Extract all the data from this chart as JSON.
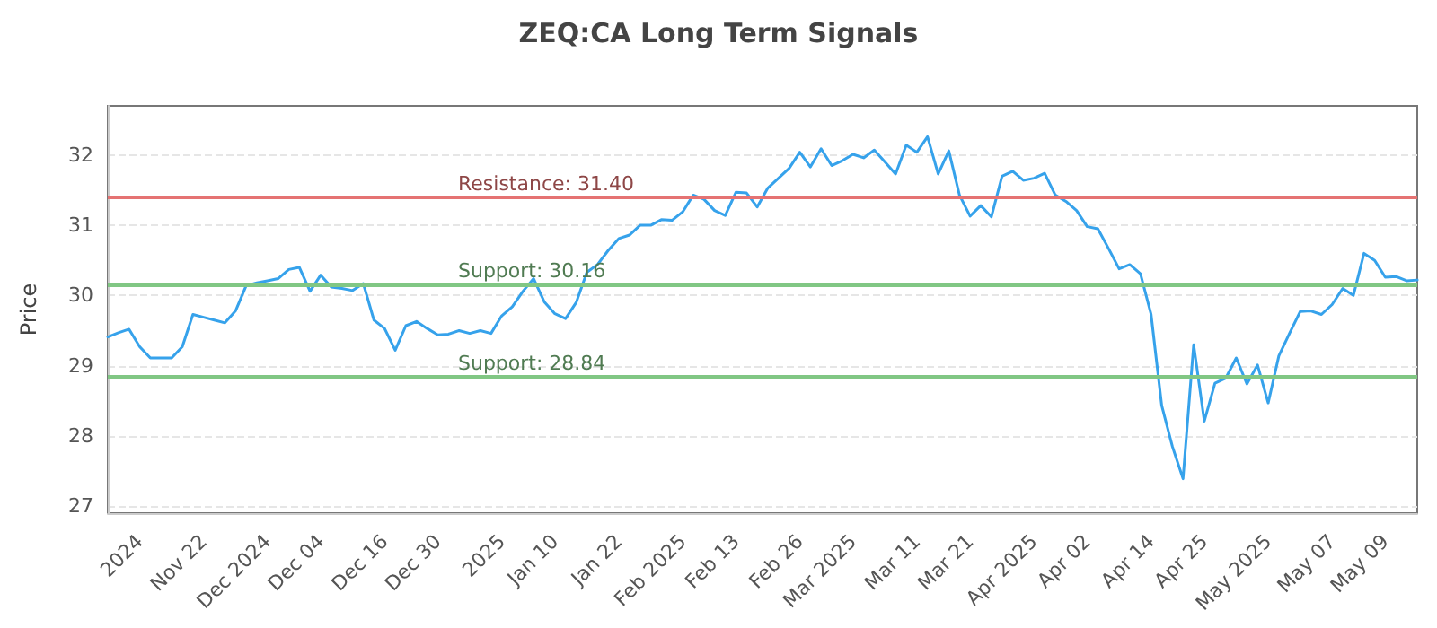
{
  "chart_data": {
    "type": "line",
    "title": "ZEQ:CA Long Term Signals",
    "ylabel": "Price",
    "categories": [
      null,
      null,
      null,
      "2024",
      null,
      null,
      null,
      null,
      null,
      "Nov 22",
      null,
      null,
      null,
      null,
      null,
      "Dec 2024",
      null,
      null,
      null,
      null,
      "Dec 04",
      null,
      null,
      null,
      null,
      null,
      "Dec 16",
      null,
      null,
      null,
      null,
      "Dec 30",
      null,
      null,
      null,
      null,
      null,
      "2025",
      null,
      null,
      null,
      null,
      "Jan 10",
      null,
      null,
      null,
      null,
      null,
      "Jan 22",
      null,
      null,
      null,
      null,
      null,
      "Feb 2025",
      null,
      null,
      null,
      null,
      "Feb 13",
      null,
      null,
      null,
      null,
      null,
      "Feb 26",
      null,
      null,
      null,
      null,
      "Mar 2025",
      null,
      null,
      null,
      null,
      null,
      "Mar 11",
      null,
      null,
      null,
      null,
      "Mar 21",
      null,
      null,
      null,
      null,
      null,
      "Apr 2025",
      null,
      null,
      null,
      null,
      "Apr 02",
      null,
      null,
      null,
      null,
      null,
      "Apr 14",
      null,
      null,
      null,
      null,
      "Apr 25",
      null,
      null,
      null,
      null,
      null,
      "May 2025",
      null,
      null,
      null,
      null,
      null,
      "May 07",
      null,
      null,
      null,
      null,
      "May 09",
      null,
      null,
      null
    ],
    "series": [
      {
        "color": "#36a2eb",
        "values": [
          29.41,
          29.47,
          29.52,
          29.27,
          29.11,
          29.11,
          29.11,
          29.27,
          29.73,
          29.69,
          29.65,
          29.61,
          29.78,
          30.14,
          30.18,
          30.21,
          30.24,
          30.37,
          30.4,
          30.06,
          30.29,
          30.12,
          30.1,
          30.07,
          30.17,
          29.65,
          29.53,
          29.22,
          29.57,
          29.63,
          29.53,
          29.44,
          29.45,
          29.5,
          29.46,
          29.5,
          29.46,
          29.71,
          29.84,
          30.06,
          30.24,
          29.91,
          29.74,
          29.67,
          29.9,
          30.33,
          30.44,
          30.64,
          30.81,
          30.86,
          31.0,
          31.0,
          31.08,
          31.07,
          31.19,
          31.43,
          31.37,
          31.21,
          31.14,
          31.47,
          31.46,
          31.26,
          31.53,
          31.67,
          31.81,
          32.04,
          31.83,
          32.09,
          31.85,
          31.92,
          32.01,
          31.96,
          32.07,
          31.9,
          31.73,
          32.14,
          32.04,
          32.26,
          31.73,
          32.06,
          31.43,
          31.13,
          31.28,
          31.12,
          31.7,
          31.77,
          31.64,
          31.67,
          31.74,
          31.43,
          31.34,
          31.21,
          30.98,
          30.95,
          30.67,
          30.38,
          30.44,
          30.31,
          29.73,
          28.43,
          27.85,
          27.39,
          29.3,
          28.21,
          28.75,
          28.82,
          29.11,
          28.74,
          29.01,
          28.47,
          29.14,
          29.46,
          29.77,
          29.78,
          29.73,
          29.87,
          30.1,
          30.0,
          30.6,
          30.5,
          30.26,
          30.27,
          30.21,
          30.22
        ]
      }
    ],
    "ylim": [
      26.9,
      32.7
    ],
    "yticks": [
      27,
      28,
      29,
      30,
      31,
      32
    ],
    "ref_lines": [
      {
        "axis": "y",
        "value": 31.4,
        "label": "Resistance: 31.40",
        "color": "#e57373"
      },
      {
        "axis": "y",
        "value": 30.16,
        "label": "Support: 30.16",
        "color": "#81c784"
      },
      {
        "axis": "y",
        "value": 28.84,
        "label": "Support: 28.84",
        "color": "#81c784"
      }
    ],
    "grid": "y",
    "marker": "none",
    "line_style": "solid"
  }
}
